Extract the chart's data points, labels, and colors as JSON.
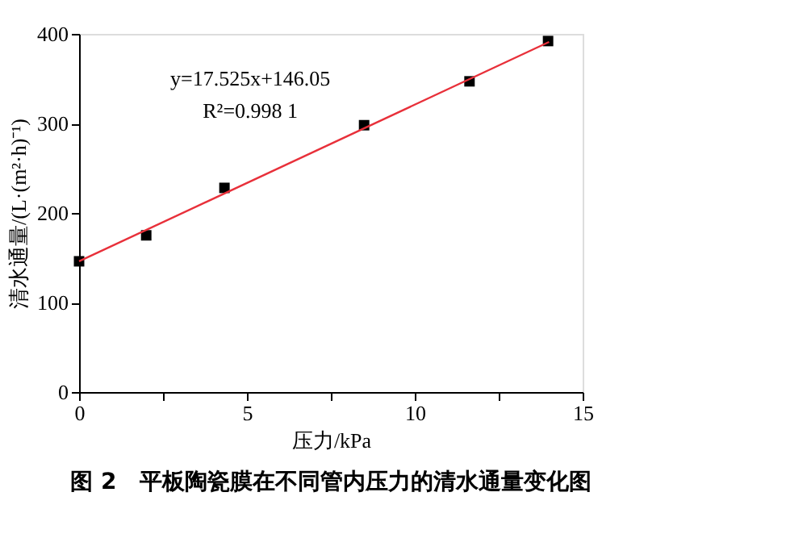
{
  "chart_data": {
    "type": "scatter",
    "title": "图 2　平板陶瓷膜在不同管内压力的清水通量变化图",
    "xlabel": "压力/kPa",
    "ylabel": "清水通量/(L·(m²·h)⁻¹)",
    "x": [
      0,
      2.0,
      4.33,
      8.49,
      11.63,
      13.97
    ],
    "series": [
      {
        "type": "scatter",
        "color": "#000000",
        "marker": "square",
        "values": [
          146,
          175,
          228,
          298,
          347,
          392
        ]
      },
      {
        "type": "line",
        "color": "#e8303a",
        "marker": "none",
        "line_style": "solid",
        "x": [
          0,
          14
        ],
        "values": [
          146,
          391
        ]
      }
    ],
    "annotations": [
      "y=17.525x+146.05",
      "R²=0.998 1"
    ],
    "xlim": [
      0,
      15
    ],
    "ylim": [
      0,
      400
    ],
    "xticks": [
      0,
      {
        "value": 2.5,
        "label": null
      },
      5,
      {
        "value": 7.5,
        "label": null
      },
      10,
      {
        "value": 12.5,
        "label": null
      },
      15
    ],
    "yticks": [
      0,
      100,
      200,
      300,
      400
    ],
    "grid": false
  }
}
